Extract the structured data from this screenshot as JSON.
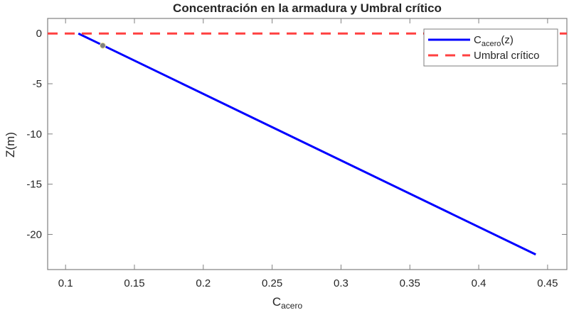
{
  "chart_data": {
    "type": "line",
    "title": "Concentración en la armadura y Umbral crítico",
    "xlabel": "C_acero",
    "xlabel_main": "C",
    "xlabel_sub": "acero",
    "ylabel": "Z(m)",
    "xlim": [
      0.087,
      0.464
    ],
    "ylim": [
      -23.5,
      1.5
    ],
    "xticks": [
      0.1,
      0.15,
      0.2,
      0.25,
      0.3,
      0.35,
      0.4,
      0.45
    ],
    "xtick_labels": [
      "0.1",
      "0.15",
      "0.2",
      "0.25",
      "0.3",
      "0.35",
      "0.4",
      "0.45"
    ],
    "yticks": [
      0,
      -5,
      -10,
      -15,
      -20
    ],
    "ytick_labels": [
      "0",
      "-5",
      "-10",
      "-15",
      "-20"
    ],
    "grid": false,
    "legend_position": "northeast",
    "series": [
      {
        "name": "C_acero(z)",
        "legend_main": "C",
        "legend_sub": "acero",
        "legend_suffix": "(z)",
        "style": "solid",
        "color": "#0000ff",
        "x": [
          0.1093,
          0.4414
        ],
        "y": [
          0,
          -22
        ]
      },
      {
        "name": "Umbral crítico",
        "style": "dashed",
        "color": "#ff4040",
        "x": [
          0.087,
          0.464
        ],
        "y": [
          0,
          0
        ]
      }
    ],
    "annotations": [
      {
        "type": "marker",
        "x": 0.127,
        "y": -1.2,
        "color": "#808080"
      }
    ]
  }
}
